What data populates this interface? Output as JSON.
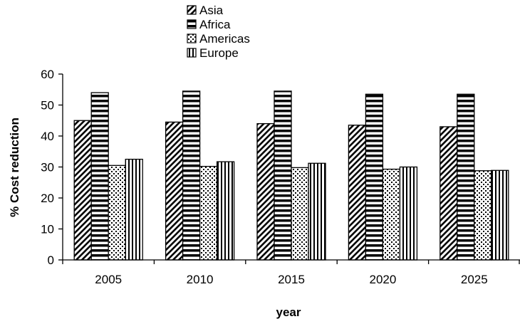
{
  "chart_data": {
    "type": "bar",
    "categories": [
      "2005",
      "2010",
      "2015",
      "2020",
      "2025"
    ],
    "series": [
      {
        "name": "Asia",
        "pattern": "diagonal",
        "values": [
          45,
          44.5,
          44,
          43.5,
          43
        ]
      },
      {
        "name": "Africa",
        "pattern": "horizontal",
        "values": [
          54,
          54.5,
          54.5,
          53.5,
          53.5
        ]
      },
      {
        "name": "Americas",
        "pattern": "dotted",
        "values": [
          30.5,
          30.2,
          29.8,
          29.3,
          28.8
        ]
      },
      {
        "name": "Europe",
        "pattern": "vertical",
        "values": [
          32.5,
          31.7,
          31.2,
          30,
          28.9
        ]
      }
    ],
    "xlabel": "year",
    "ylabel": "% Cost reduction",
    "ylim": [
      0,
      60
    ],
    "yticks": [
      0,
      10,
      20,
      30,
      40,
      50,
      60
    ],
    "grid": false,
    "legend_position": "top-center"
  }
}
